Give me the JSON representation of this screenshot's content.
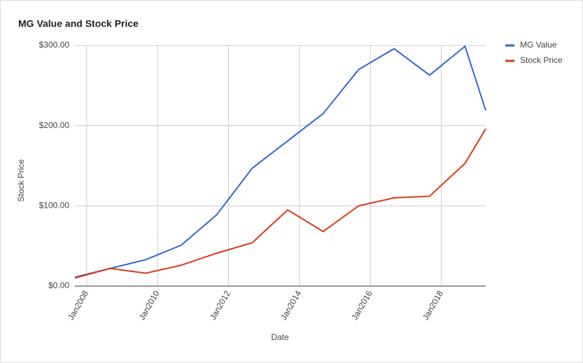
{
  "chart_data": {
    "type": "line",
    "title": "MG Value and Stock Price",
    "x_label": "Date",
    "y_label": "Stock Price",
    "x": [
      "2007-09",
      "2008-09",
      "2009-09",
      "2010-09",
      "2011-09",
      "2012-09",
      "2013-09",
      "2014-09",
      "2015-09",
      "2016-09",
      "2017-09",
      "2018-09",
      "2019-04"
    ],
    "series": [
      {
        "name": "MG Value",
        "color": "#3366cc",
        "values": [
          11,
          22,
          33,
          51,
          89,
          147,
          181,
          215,
          270,
          296,
          263,
          299,
          219
        ]
      },
      {
        "name": "Stock Price",
        "color": "#dc3912",
        "values": [
          10,
          22,
          16,
          26,
          41,
          54,
          95,
          68,
          100,
          110,
          112,
          153,
          196
        ]
      }
    ],
    "xlim": [
      "2007-09",
      "2019-04"
    ],
    "xticks": [
      {
        "value": "2008-01",
        "label": "Jan2008"
      },
      {
        "value": "2010-01",
        "label": "Jan2010"
      },
      {
        "value": "2012-01",
        "label": "Jan2012"
      },
      {
        "value": "2014-01",
        "label": "Jan2014"
      },
      {
        "value": "2016-01",
        "label": "Jan2016"
      },
      {
        "value": "2018-01",
        "label": "Jan2018"
      }
    ],
    "ylim": [
      0,
      300
    ],
    "yticks": [
      {
        "value": 0,
        "label": "$0.00"
      },
      {
        "value": 100,
        "label": "$100.00"
      },
      {
        "value": 200,
        "label": "$200.00"
      },
      {
        "value": 300,
        "label": "$300.00"
      }
    ],
    "grid": true,
    "legend": "right"
  }
}
